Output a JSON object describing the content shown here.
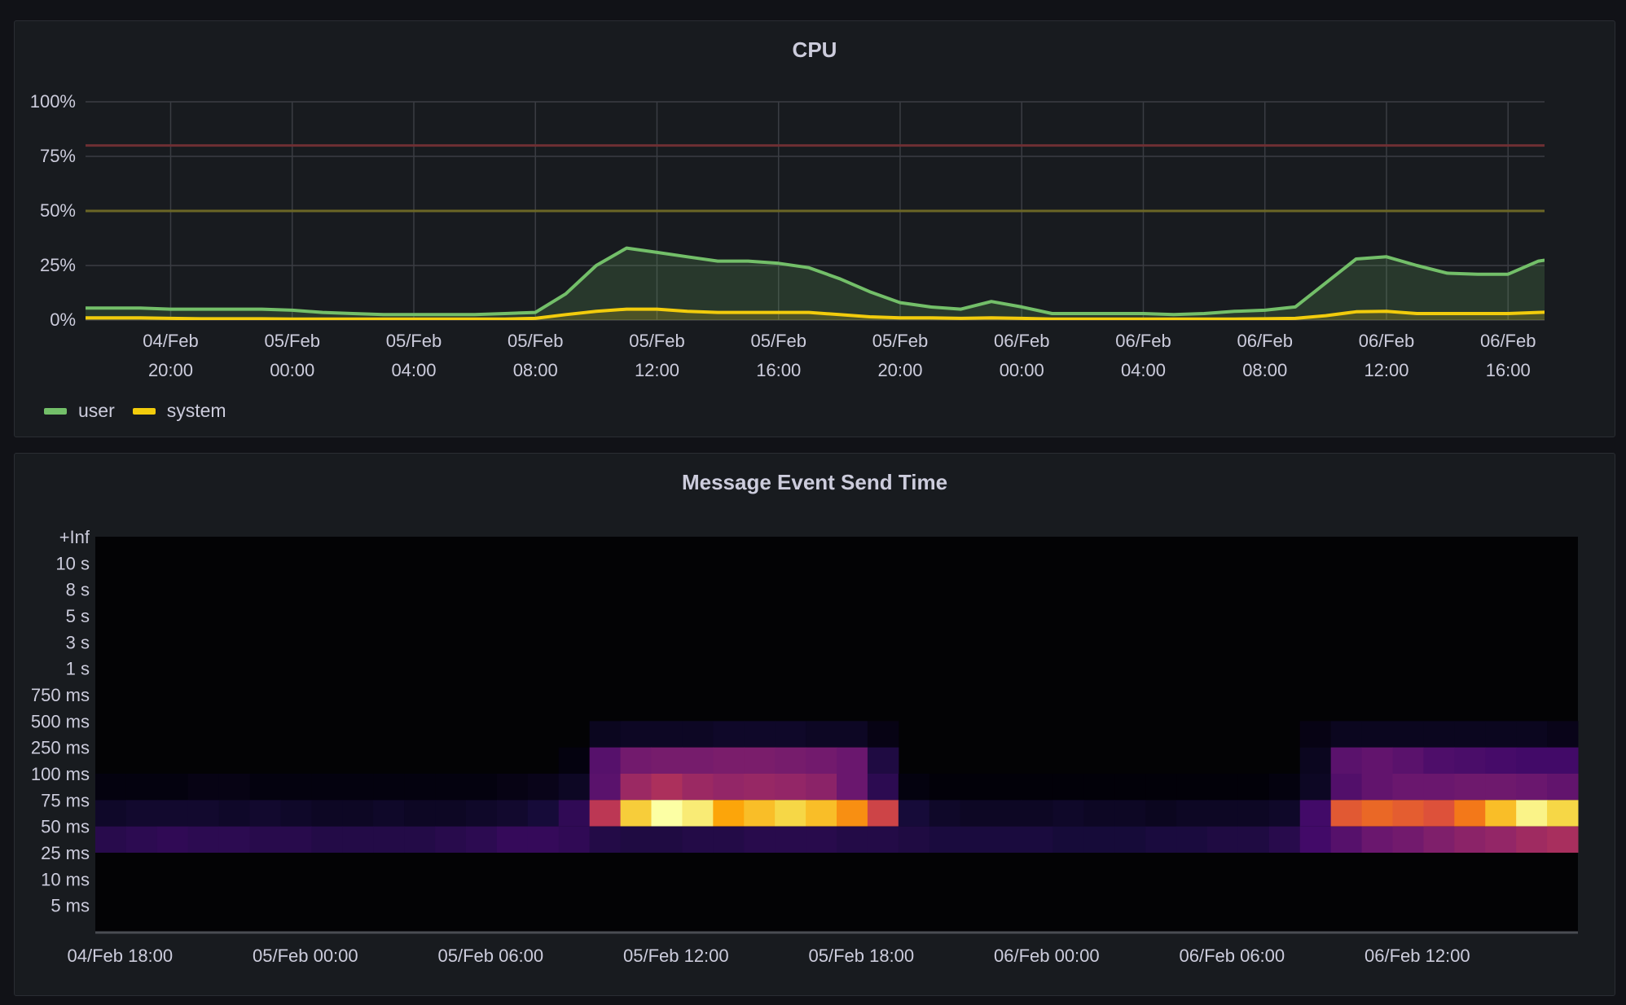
{
  "colors": {
    "background": "#111217",
    "panel": "#181b1f",
    "user": "#73bf69",
    "system": "#f2cc0c",
    "threshold_red": "#6e2f33",
    "threshold_yellow": "#6b6626"
  },
  "chart_data": [
    {
      "type": "area",
      "title": "CPU",
      "xlim": [
        "04/Feb 17:12",
        "06/Feb 17:12"
      ],
      "ylim": [
        0,
        100
      ],
      "yticks": [
        "0%",
        "25%",
        "50%",
        "75%",
        "100%"
      ],
      "ytick_values": [
        0,
        25,
        50,
        75,
        100
      ],
      "xticks": [
        {
          "t": "04/Feb 20:00",
          "l1": "04/Feb",
          "l2": "20:00"
        },
        {
          "t": "05/Feb 00:00",
          "l1": "05/Feb",
          "l2": "00:00"
        },
        {
          "t": "05/Feb 04:00",
          "l1": "05/Feb",
          "l2": "04:00"
        },
        {
          "t": "05/Feb 08:00",
          "l1": "05/Feb",
          "l2": "08:00"
        },
        {
          "t": "05/Feb 12:00",
          "l1": "05/Feb",
          "l2": "12:00"
        },
        {
          "t": "05/Feb 16:00",
          "l1": "05/Feb",
          "l2": "16:00"
        },
        {
          "t": "05/Feb 20:00",
          "l1": "05/Feb",
          "l2": "20:00"
        },
        {
          "t": "06/Feb 00:00",
          "l1": "06/Feb",
          "l2": "00:00"
        },
        {
          "t": "06/Feb 04:00",
          "l1": "06/Feb",
          "l2": "04:00"
        },
        {
          "t": "06/Feb 08:00",
          "l1": "06/Feb",
          "l2": "08:00"
        },
        {
          "t": "06/Feb 12:00",
          "l1": "06/Feb",
          "l2": "12:00"
        },
        {
          "t": "06/Feb 16:00",
          "l1": "06/Feb",
          "l2": "16:00"
        }
      ],
      "grid": true,
      "legend": "bottom-left",
      "thresholds": [
        {
          "value": 80,
          "color": "#6e2f33"
        },
        {
          "value": 50,
          "color": "#6b6626"
        }
      ],
      "x_start": "04/Feb 17:00",
      "x_step_hours": 1,
      "series": [
        {
          "name": "user",
          "color": "#73bf69",
          "values": [
            5.5,
            5.5,
            5.5,
            5,
            5,
            5,
            5,
            4.5,
            3.5,
            3,
            2.5,
            2.5,
            2.5,
            2.5,
            3,
            3.5,
            12,
            25,
            33,
            31,
            29,
            27,
            27,
            26,
            24,
            19,
            13,
            8,
            6,
            5,
            8.5,
            6,
            3,
            3,
            3,
            3,
            2.5,
            3,
            4,
            4.5,
            6,
            17,
            28,
            29,
            25,
            21.5,
            21,
            21,
            27,
            29
          ]
        },
        {
          "name": "system",
          "color": "#f2cc0c",
          "values": [
            1,
            1,
            1,
            0.8,
            0.6,
            0.6,
            0.6,
            0.5,
            0.5,
            0.5,
            0.5,
            0.5,
            0.5,
            0.5,
            0.5,
            0.8,
            2.5,
            4,
            5,
            5,
            4,
            3.5,
            3.5,
            3.5,
            3.5,
            2.5,
            1.5,
            1,
            1,
            0.8,
            1,
            0.8,
            0.5,
            0.5,
            0.5,
            0.5,
            0.5,
            0.5,
            0.5,
            0.6,
            0.8,
            2,
            3.8,
            4,
            3,
            3,
            3,
            3,
            3.5,
            4
          ]
        }
      ]
    },
    {
      "type": "heatmap",
      "title": "Message Event Send Time",
      "xlim": [
        "04/Feb 17:12",
        "06/Feb 17:12"
      ],
      "xticks": [
        "04/Feb 18:00",
        "05/Feb 00:00",
        "05/Feb 06:00",
        "05/Feb 12:00",
        "05/Feb 18:00",
        "06/Feb 00:00",
        "06/Feb 06:00",
        "06/Feb 12:00"
      ],
      "y_boundaries": [
        "+Inf",
        "10 s",
        "8 s",
        "5 s",
        "3 s",
        "1 s",
        "750 ms",
        "500 ms",
        "250 ms",
        "100 ms",
        "75 ms",
        "50 ms",
        "25 ms",
        "10 ms",
        "5 ms",
        ""
      ],
      "x_start": "04/Feb 17:12",
      "x_step_hours": 1,
      "color_scheme": "inferno",
      "rows": [
        {
          "bucket": "250 ms-500 ms",
          "values": [
            0,
            0,
            0,
            0,
            0,
            0,
            0,
            0,
            0,
            0,
            0,
            0,
            0,
            0,
            0,
            0,
            0.05,
            0.06,
            0.06,
            0.06,
            0.07,
            0.07,
            0.07,
            0.06,
            0.06,
            0.03,
            0,
            0,
            0,
            0,
            0,
            0,
            0,
            0,
            0,
            0,
            0,
            0,
            0,
            0.03,
            0.05,
            0.05,
            0.05,
            0.05,
            0.05,
            0.05,
            0.05,
            0.04
          ]
        },
        {
          "bucket": "100 ms-250 ms",
          "values": [
            0,
            0,
            0,
            0,
            0,
            0,
            0,
            0,
            0,
            0,
            0,
            0,
            0,
            0,
            0,
            0.02,
            0.25,
            0.32,
            0.33,
            0.33,
            0.34,
            0.34,
            0.33,
            0.32,
            0.3,
            0.12,
            0,
            0,
            0,
            0,
            0,
            0,
            0,
            0,
            0,
            0,
            0,
            0,
            0,
            0.05,
            0.26,
            0.28,
            0.26,
            0.23,
            0.22,
            0.21,
            0.2,
            0.2
          ]
        },
        {
          "bucket": "75 ms-100 ms",
          "values": [
            0.02,
            0.02,
            0.02,
            0.03,
            0.03,
            0.02,
            0.02,
            0.02,
            0.02,
            0.02,
            0.02,
            0.02,
            0.02,
            0.03,
            0.04,
            0.06,
            0.26,
            0.42,
            0.46,
            0.42,
            0.4,
            0.41,
            0.4,
            0.38,
            0.3,
            0.15,
            0.02,
            0.01,
            0.01,
            0.01,
            0.01,
            0.01,
            0.01,
            0.01,
            0.01,
            0.01,
            0.01,
            0.01,
            0.02,
            0.06,
            0.24,
            0.28,
            0.3,
            0.3,
            0.31,
            0.31,
            0.3,
            0.28
          ]
        },
        {
          "bucket": "50 ms-75 ms",
          "values": [
            0.07,
            0.08,
            0.08,
            0.08,
            0.07,
            0.08,
            0.07,
            0.06,
            0.06,
            0.07,
            0.06,
            0.06,
            0.07,
            0.08,
            0.1,
            0.16,
            0.5,
            0.88,
            1.0,
            0.95,
            0.8,
            0.85,
            0.9,
            0.85,
            0.75,
            0.55,
            0.1,
            0.07,
            0.06,
            0.06,
            0.06,
            0.07,
            0.06,
            0.06,
            0.05,
            0.06,
            0.06,
            0.06,
            0.07,
            0.2,
            0.62,
            0.66,
            0.63,
            0.6,
            0.7,
            0.85,
            0.97,
            0.9
          ]
        },
        {
          "bucket": "25 ms-50 ms",
          "values": [
            0.14,
            0.15,
            0.16,
            0.15,
            0.15,
            0.14,
            0.14,
            0.13,
            0.13,
            0.13,
            0.13,
            0.14,
            0.15,
            0.17,
            0.17,
            0.16,
            0.13,
            0.12,
            0.12,
            0.13,
            0.13,
            0.14,
            0.14,
            0.14,
            0.13,
            0.13,
            0.12,
            0.11,
            0.11,
            0.11,
            0.11,
            0.1,
            0.1,
            0.1,
            0.11,
            0.11,
            0.12,
            0.12,
            0.14,
            0.2,
            0.25,
            0.3,
            0.32,
            0.35,
            0.38,
            0.4,
            0.43,
            0.45
          ]
        }
      ]
    }
  ],
  "legend": [
    {
      "label": "user",
      "color": "#73bf69"
    },
    {
      "label": "system",
      "color": "#f2cc0c"
    }
  ]
}
